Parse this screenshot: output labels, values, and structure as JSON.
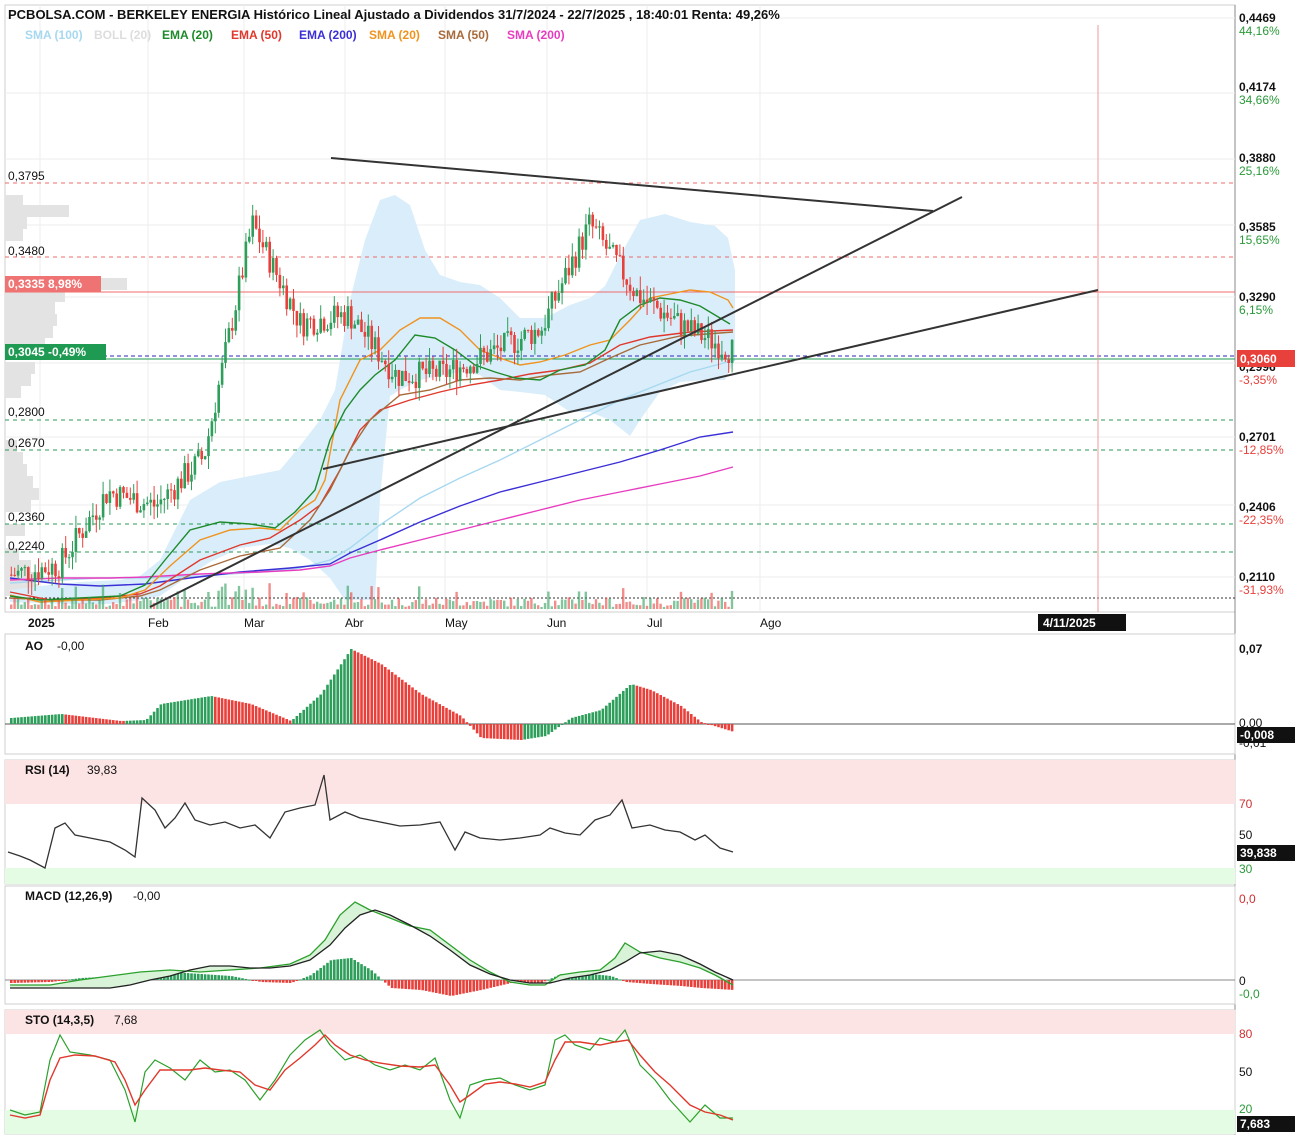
{
  "header": {
    "title": "PCBOLSA.COM - BERKELEY ENERGIA Histórico Lineal Ajustado a Dividendos 31/7/2024 - 22/7/2025 , 18:40:01 Renta: 49,26%"
  },
  "legend": [
    {
      "label": "SMA (100)",
      "color": "#a7d8f0"
    },
    {
      "label": "BOLL (20)",
      "color": "#dddddd"
    },
    {
      "label": "EMA (20)",
      "color": "#1e8a2a"
    },
    {
      "label": "EMA (50)",
      "color": "#e0382c"
    },
    {
      "label": "EMA (200)",
      "color": "#3b2fd6"
    },
    {
      "label": "SMA (20)",
      "color": "#f0931e"
    },
    {
      "label": "SMA (50)",
      "color": "#a86a3a"
    },
    {
      "label": "SMA (200)",
      "color": "#e83cc0"
    }
  ],
  "colors": {
    "up": "#2e9e5b",
    "down": "#e8413c",
    "panel_bg_top": "#fde4e4",
    "panel_bg_bottom": "#e4fbe4"
  },
  "price_axis": [
    {
      "price": "0,4469",
      "pct": "44,16%"
    },
    {
      "price": "0,4174",
      "pct": "34,66%"
    },
    {
      "price": "0,3880",
      "pct": "25,16%"
    },
    {
      "price": "0,3585",
      "pct": "15,65%"
    },
    {
      "price": "0,3290",
      "pct": "6,15%"
    },
    {
      "price": "0,2996",
      "pct": "-3,35%"
    },
    {
      "price": "0,2701",
      "pct": "-12,85%"
    },
    {
      "price": "0,2406",
      "pct": "-22,35%"
    },
    {
      "price": "0,2110",
      "pct": "-31,93%"
    }
  ],
  "current_price_tag": "0,3060",
  "left_levels": [
    "0,3795",
    "0,3480",
    "0,2800",
    "0,2670",
    "0,2360",
    "0,2240"
  ],
  "left_tags": [
    {
      "text": "0,3335  8,98%",
      "color": "#ef7373"
    },
    {
      "text": "0,3045  -0,49%",
      "color": "#1f9a52"
    }
  ],
  "x_axis": {
    "labels": [
      "2025",
      "Feb",
      "Mar",
      "Abr",
      "May",
      "Jun",
      "Jul",
      "Ago"
    ],
    "date_tag": "4/11/2025"
  },
  "indicators": {
    "ao": {
      "label": "AO",
      "value": "-0,00",
      "ticks": [
        "0,07",
        "0,00",
        "-0,01"
      ],
      "tag": "-0,008"
    },
    "rsi": {
      "label": "RSI (14)",
      "value": "39,83",
      "ticks": [
        "70",
        "50",
        "30"
      ],
      "tag": "39,838"
    },
    "macd": {
      "label": "MACD (12,26,9)",
      "value": "-0,00",
      "ticks": [
        "0,0",
        "0",
        "-0,0"
      ]
    },
    "sto": {
      "label": "STO (14,3,5)",
      "value": "7,68",
      "ticks": [
        "80",
        "50",
        "20"
      ],
      "tag": "7,683"
    }
  },
  "chart_data": {
    "type": "candlestick",
    "title": "PCBOLSA.COM - BERKELEY ENERGIA Histórico Lineal Ajustado a Dividendos 31/7/2024 - 22/7/2025 , 18:40:01 Renta: 49,26%",
    "x_range": [
      "2025-01-01",
      "2025-07-22"
    ],
    "ylim": [
      0.211,
      0.4469
    ],
    "grid": true,
    "legend_position": "top-left",
    "price_series": [
      {
        "date": "2025-01",
        "close": 0.212
      },
      {
        "date": "2025-02-01",
        "close": 0.216
      },
      {
        "date": "2025-02-15",
        "close": 0.247
      },
      {
        "date": "2025-03-01",
        "close": 0.241
      },
      {
        "date": "2025-03-15",
        "close": 0.262
      },
      {
        "date": "2025-03-22",
        "close": 0.36
      },
      {
        "date": "2025-04-01",
        "close": 0.318
      },
      {
        "date": "2025-04-15",
        "close": 0.322
      },
      {
        "date": "2025-05-01",
        "close": 0.296
      },
      {
        "date": "2025-05-15",
        "close": 0.297
      },
      {
        "date": "2025-06-01",
        "close": 0.306
      },
      {
        "date": "2025-06-15",
        "close": 0.316
      },
      {
        "date": "2025-06-20",
        "close": 0.36
      },
      {
        "date": "2025-07-01",
        "close": 0.33
      },
      {
        "date": "2025-07-15",
        "close": 0.316
      },
      {
        "date": "2025-07-22",
        "close": 0.306
      }
    ],
    "indicator_last_values": {
      "AO": -0.008,
      "RSI": 39.838,
      "STO": 7.683
    }
  }
}
